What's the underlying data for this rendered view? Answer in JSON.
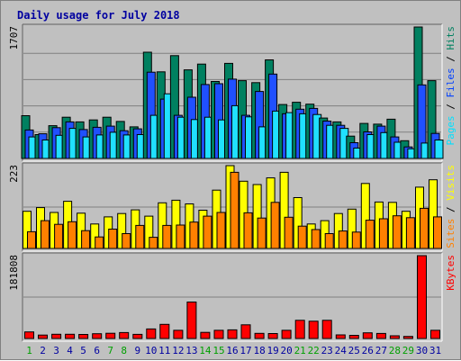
{
  "chart_data": {
    "type": "bar",
    "title": "Daily usage for July 2018",
    "days": [
      "1",
      "2",
      "3",
      "4",
      "5",
      "6",
      "7",
      "8",
      "9",
      "10",
      "11",
      "12",
      "13",
      "14",
      "15",
      "16",
      "17",
      "18",
      "19",
      "20",
      "21",
      "22",
      "23",
      "24",
      "25",
      "26",
      "27",
      "28",
      "29",
      "30",
      "31"
    ],
    "weekend_days": [
      1,
      7,
      8,
      14,
      15,
      21,
      22,
      28,
      29
    ],
    "panels": [
      {
        "name": "hits-panel",
        "max_label": "1707",
        "ylim": [
          0,
          1707
        ],
        "legend": [
          {
            "text": "Pages",
            "color": "#00e0ff"
          },
          {
            "text": "Files",
            "color": "#0040ff"
          },
          {
            "text": "Hits",
            "color": "#008060"
          }
        ],
        "series": [
          {
            "name": "Hits",
            "color": "#008060",
            "values": [
              555,
              310,
              425,
              535,
              475,
              500,
              535,
              480,
              410,
              1380,
              1125,
              1335,
              1150,
              1225,
              1000,
              1235,
              1010,
              985,
              1280,
              700,
              730,
              705,
              525,
              475,
              290,
              455,
              445,
              510,
              230,
              1707,
              1010
            ]
          },
          {
            "name": "Files",
            "color": "#2050ff",
            "values": [
              370,
              320,
              400,
              475,
              375,
              405,
              420,
              360,
              385,
              1120,
              770,
              560,
              795,
              960,
              970,
              1030,
              560,
              870,
              1095,
              580,
              640,
              650,
              485,
              430,
              205,
              345,
              420,
              280,
              150,
              955,
              325
            ]
          },
          {
            "name": "Pages",
            "color": "#20e0ff",
            "values": [
              280,
              240,
              300,
              390,
              280,
              305,
              340,
              305,
              310,
              560,
              840,
              535,
              505,
              535,
              500,
              685,
              540,
              410,
              615,
              595,
              580,
              570,
              430,
              390,
              135,
              310,
              335,
              210,
              125,
              200,
              240
            ]
          }
        ]
      },
      {
        "name": "visits-panel",
        "max_label": "223",
        "ylim": [
          0,
          223
        ],
        "legend": [
          {
            "text": "Sites",
            "color": "#ff8000"
          },
          {
            "text": "Visits",
            "color": "#ffff00"
          }
        ],
        "series": [
          {
            "name": "Visits",
            "color": "#ffff00",
            "values": [
              100,
              110,
              97,
              127,
              95,
              66,
              85,
              94,
              104,
              87,
              123,
              130,
              120,
              103,
              157,
              223,
              181,
              172,
              190,
              205,
              137,
              66,
              75,
              94,
              106,
              175,
              125,
              124,
              100,
              165,
              185
            ]
          },
          {
            "name": "Sites",
            "color": "#ff8000",
            "values": [
              45,
              75,
              65,
              72,
              48,
              31,
              52,
              40,
              62,
              30,
              62,
              63,
              71,
              87,
              97,
              205,
              96,
              82,
              124,
              84,
              60,
              51,
              40,
              47,
              44,
              76,
              80,
              88,
              83,
              108,
              85
            ]
          }
        ]
      },
      {
        "name": "kbytes-panel",
        "max_label": "181808",
        "ylim": [
          0,
          181808
        ],
        "legend": [
          {
            "text": "KBytes",
            "color": "#ff0000"
          }
        ],
        "series": [
          {
            "name": "KBytes",
            "color": "#ff0000",
            "values": [
              14500,
              7500,
              9200,
              9200,
              8800,
              10500,
              11500,
              13000,
              9000,
              21000,
              31000,
              18000,
              80000,
              13500,
              18000,
              19000,
              30000,
              11200,
              10800,
              18000,
              40000,
              38000,
              40000,
              8000,
              7000,
              12500,
              11000,
              6000,
              4500,
              181808,
              18000
            ]
          }
        ]
      }
    ],
    "colors": {
      "title": "#0000a0",
      "panel_bg": "#c0c0c0",
      "grid": "#808080",
      "weekday_label": "#0000a0",
      "weekend_label": "#00a000"
    }
  }
}
